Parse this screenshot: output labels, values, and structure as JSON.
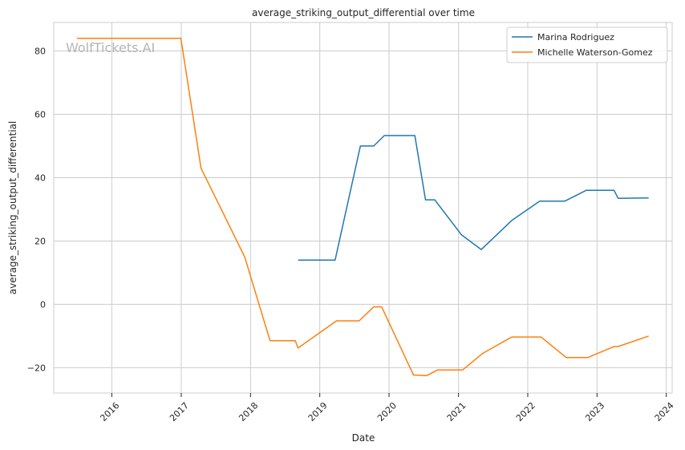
{
  "chart_data": {
    "type": "line",
    "title": "average_striking_output_differential over time",
    "xlabel": "Date",
    "ylabel": "average_striking_output_differential",
    "xlim": [
      "2015-03-01",
      "2024-02-01"
    ],
    "ylim": [
      -28,
      89
    ],
    "x_ticks": [
      "2016",
      "2017",
      "2018",
      "2019",
      "2020",
      "2021",
      "2022",
      "2023",
      "2024"
    ],
    "y_ticks": [
      -20,
      0,
      20,
      40,
      60,
      80
    ],
    "grid": true,
    "legend_position": "top-right",
    "watermark": "WolfTickets.AI",
    "series": [
      {
        "name": "Marina Rodriguez",
        "color": "#1f77b4",
        "points": [
          [
            "2018-09-09",
            14
          ],
          [
            "2019-03-23",
            14
          ],
          [
            "2019-08-03",
            50
          ],
          [
            "2019-10-12",
            50
          ],
          [
            "2019-12-07",
            53.3
          ],
          [
            "2020-05-16",
            53.3
          ],
          [
            "2020-07-11",
            33
          ],
          [
            "2020-08-29",
            33
          ],
          [
            "2021-01-16",
            22
          ],
          [
            "2021-05-01",
            17.3
          ],
          [
            "2021-10-09",
            26.5
          ],
          [
            "2022-03-05",
            32.6
          ],
          [
            "2022-07-16",
            32.6
          ],
          [
            "2022-11-05",
            36
          ],
          [
            "2023-04-01",
            36
          ],
          [
            "2023-04-22",
            33.5
          ],
          [
            "2023-09-30",
            33.6
          ]
        ]
      },
      {
        "name": "Michelle Waterson-Gomez",
        "color": "#ff7f0e",
        "points": [
          [
            "2015-07-01",
            84
          ],
          [
            "2016-12-30",
            84
          ],
          [
            "2017-04-15",
            43
          ],
          [
            "2017-12-01",
            15
          ],
          [
            "2018-04-14",
            -11.5
          ],
          [
            "2018-08-25",
            -11.5
          ],
          [
            "2018-09-08",
            -13.8
          ],
          [
            "2019-03-30",
            -5.2
          ],
          [
            "2019-07-27",
            -5.2
          ],
          [
            "2019-10-12",
            -0.8
          ],
          [
            "2019-11-23",
            -0.8
          ],
          [
            "2020-05-09",
            -22.3
          ],
          [
            "2020-07-18",
            -22.5
          ],
          [
            "2020-09-12",
            -20.7
          ],
          [
            "2021-01-23",
            -20.7
          ],
          [
            "2021-05-08",
            -15.5
          ],
          [
            "2021-10-09",
            -10.3
          ],
          [
            "2022-03-12",
            -10.3
          ],
          [
            "2022-07-23",
            -16.8
          ],
          [
            "2022-11-12",
            -16.8
          ],
          [
            "2023-04-01",
            -13.3
          ],
          [
            "2023-04-22",
            -13.3
          ],
          [
            "2023-09-30",
            -10
          ]
        ]
      }
    ]
  }
}
